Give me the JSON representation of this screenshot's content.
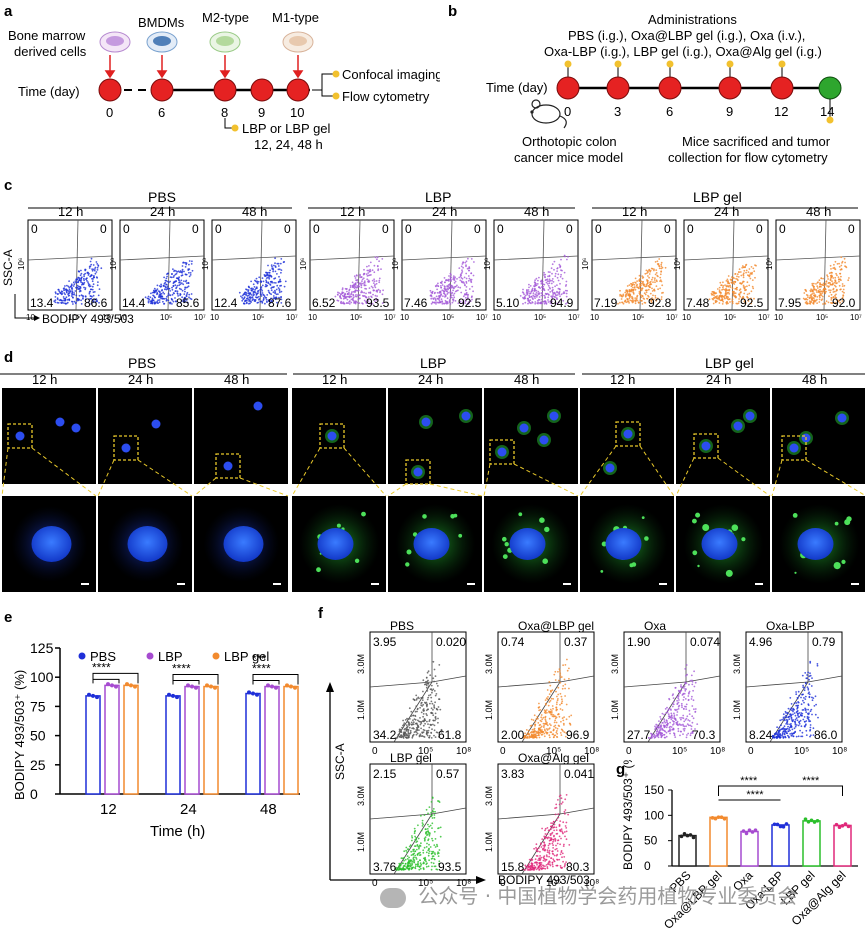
{
  "panels": {
    "a": {
      "letter": "a",
      "cells": [
        "Bone marrow",
        "derived cells",
        "BMDMs",
        "M2-type",
        "M1-type"
      ],
      "time_label": "Time (day)",
      "days": [
        "0",
        "6",
        "8",
        "9",
        "10"
      ],
      "outputs": [
        "Confocal imaging",
        "Flow cytometry"
      ],
      "treatment": [
        "LBP or LBP gel",
        "12, 24, 48 h"
      ]
    },
    "b": {
      "letter": "b",
      "title": "Administrations",
      "admin_lines": [
        "PBS (i.g.), Oxa@LBP gel (i.g.), Oxa (i.v.),",
        "Oxa-LBP (i.g.), LBP gel (i.g.), Oxa@Alg gel (i.g.)"
      ],
      "time_label": "Time (day)",
      "days": [
        "0",
        "3",
        "6",
        "9",
        "12",
        "14"
      ],
      "left_caption": [
        "Orthotopic colon",
        "cancer mice model"
      ],
      "right_caption": [
        "Mice sacrificed and tumor",
        "collection for flow cytometry"
      ]
    },
    "c": {
      "letter": "c",
      "groups": [
        "PBS",
        "LBP",
        "LBP gel"
      ],
      "times": [
        "12 h",
        "24 h",
        "48 h"
      ],
      "ylabel": "SSC-A",
      "xlabel": "BODIPY 493/503",
      "ytick": "10⁶",
      "xticks": [
        "10",
        "10⁵",
        "10⁷"
      ],
      "plots": [
        {
          "ul": "0",
          "ur": "0",
          "ll": "13.4",
          "lr": "86.6",
          "color": "#1d2fd8"
        },
        {
          "ul": "0",
          "ur": "0",
          "ll": "14.4",
          "lr": "85.6",
          "color": "#1d2fd8"
        },
        {
          "ul": "0",
          "ur": "0",
          "ll": "12.4",
          "lr": "87.6",
          "color": "#1d2fd8"
        },
        {
          "ul": "0",
          "ur": "0",
          "ll": "6.52",
          "lr": "93.5",
          "color": "#a45ad8"
        },
        {
          "ul": "0",
          "ur": "0",
          "ll": "7.46",
          "lr": "92.5",
          "color": "#a45ad8"
        },
        {
          "ul": "0",
          "ur": "0",
          "ll": "5.10",
          "lr": "94.9",
          "color": "#a45ad8"
        },
        {
          "ul": "0",
          "ur": "0",
          "ll": "7.19",
          "lr": "92.8",
          "color": "#f28a2e"
        },
        {
          "ul": "0",
          "ur": "0",
          "ll": "7.48",
          "lr": "92.5",
          "color": "#f28a2e"
        },
        {
          "ul": "0",
          "ur": "0",
          "ll": "7.95",
          "lr": "92.0",
          "color": "#f28a2e"
        }
      ]
    },
    "d": {
      "letter": "d",
      "groups": [
        "PBS",
        "LBP",
        "LBP gel"
      ],
      "times": [
        "12 h",
        "24 h",
        "48 h"
      ],
      "green_levels": [
        0,
        0,
        0,
        0.55,
        0.7,
        0.85,
        0.8,
        0.85,
        0.9
      ]
    },
    "e": {
      "letter": "e",
      "legend": [
        "PBS",
        "LBP",
        "LBP gel"
      ],
      "stars": [
        "****",
        "****",
        "****",
        "***"
      ]
    },
    "f": {
      "letter": "f",
      "ylabel": "SSC-A",
      "xlabel": "BODIPY 493/503",
      "yticks": [
        "1.0M",
        "3.0M"
      ],
      "xticks": [
        "0",
        "10⁵",
        "10⁸"
      ],
      "plots": [
        {
          "title": "PBS",
          "ul": "3.95",
          "ur": "0.020",
          "ll": "34.2",
          "lr": "61.8",
          "color": "#555555"
        },
        {
          "title": "Oxa@LBP gel",
          "ul": "0.74",
          "ur": "0.37",
          "ll": "2.00",
          "lr": "96.9",
          "color": "#f28a2e"
        },
        {
          "title": "Oxa",
          "ul": "1.90",
          "ur": "0.074",
          "ll": "27.7",
          "lr": "70.3",
          "color": "#a45ad8"
        },
        {
          "title": "Oxa-LBP",
          "ul": "4.96",
          "ur": "0.79",
          "ll": "8.24",
          "lr": "86.0",
          "color": "#1d2fd8"
        },
        {
          "title": "LBP gel",
          "ul": "2.15",
          "ur": "0.57",
          "ll": "3.76",
          "lr": "93.5",
          "color": "#2bbf2b"
        },
        {
          "title": "Oxa@Alg gel",
          "ul": "3.83",
          "ur": "0.041",
          "ll": "15.8",
          "lr": "80.3",
          "color": "#e0287a"
        }
      ]
    },
    "g": {
      "letter": "g",
      "stars": [
        "****",
        "****",
        "****"
      ]
    }
  },
  "chart_data": [
    {
      "type": "bar",
      "panel": "e",
      "categories": [
        "12",
        "24",
        "48"
      ],
      "series": [
        {
          "name": "PBS",
          "values": [
            84,
            84,
            86
          ],
          "color": "#1f2fd8"
        },
        {
          "name": "LBP",
          "values": [
            93,
            92,
            92
          ],
          "color": "#a64bd0"
        },
        {
          "name": "LBP gel",
          "values": [
            93,
            92,
            92
          ],
          "color": "#f28a2e"
        }
      ],
      "xlabel": "Time (h)",
      "ylabel": "BODIPY 493/503⁺ (%)",
      "ylim": [
        0,
        125
      ],
      "yticks": [
        0,
        25,
        50,
        75,
        100,
        125
      ]
    },
    {
      "type": "bar",
      "panel": "g",
      "categories": [
        "PBS",
        "Oxa@LBP gel",
        "Oxa",
        "Oxa-LBP",
        "LBP gel",
        "Oxa@Alg gel"
      ],
      "values": [
        60,
        96,
        68,
        81,
        89,
        80
      ],
      "colors": [
        "#222222",
        "#f28a2e",
        "#a64bd0",
        "#1f2fd8",
        "#2bbf2b",
        "#e0287a"
      ],
      "ylabel": "BODIPY 493/503⁺ (%)",
      "ylim": [
        0,
        150
      ],
      "yticks": [
        0,
        50,
        100,
        150
      ]
    }
  ],
  "watermark": "公众号 · 中国植物学会药用植物专业委员会"
}
